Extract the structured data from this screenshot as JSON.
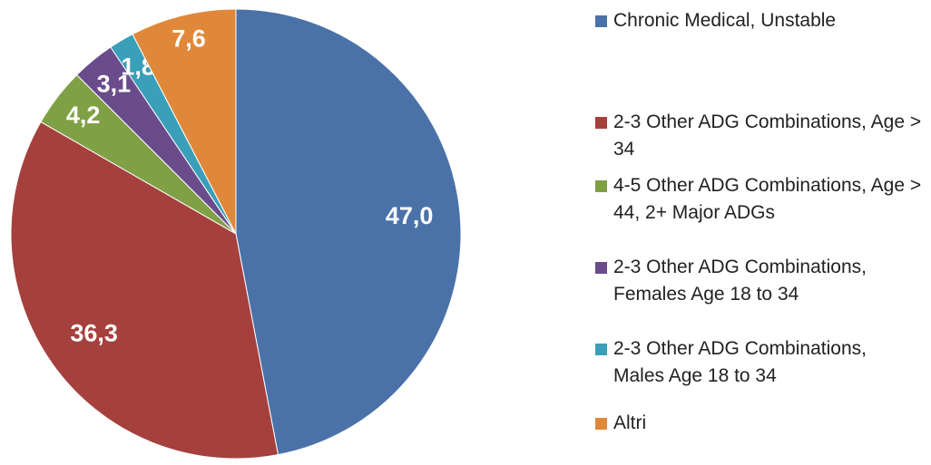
{
  "chart_data": {
    "type": "pie",
    "categories": [
      "Chronic Medical, Unstable",
      "2-3 Other ADG Combinations, Age > 34",
      "4-5 Other ADG Combinations, Age > 44, 2+ Major ADGs",
      "2-3 Other ADG Combinations, Females Age 18 to 34",
      "2-3 Other ADG Combinations, Males Age 18 to 34",
      "Altri"
    ],
    "values": [
      47.0,
      36.3,
      4.2,
      3.1,
      1.8,
      7.6
    ],
    "value_labels": [
      "47,0",
      "36,3",
      "4,2",
      "3,1",
      "1,8",
      "7,6"
    ],
    "colors": [
      "#4a72a8",
      "#a5403d",
      "#80a046",
      "#6a4c8c",
      "#3a9fb8",
      "#e0883a"
    ]
  }
}
